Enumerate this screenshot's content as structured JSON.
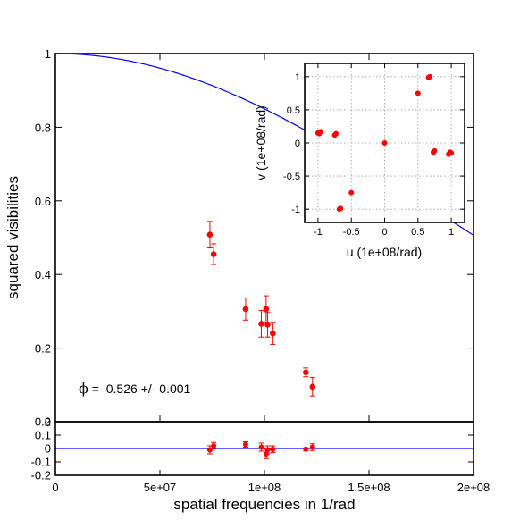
{
  "chart_data": [
    {
      "type": "scatter",
      "panel": "main",
      "xlabel": "spatial frequencies in 1/rad",
      "ylabel": "squared visibilities",
      "xlim": [
        0,
        200000000
      ],
      "ylim": [
        0,
        1
      ],
      "xticks": [
        {
          "value": 0,
          "label": "0"
        },
        {
          "value": 50000000,
          "label": "5e+07"
        },
        {
          "value": 100000000,
          "label": "1e+08"
        },
        {
          "value": 150000000,
          "label": "1.5e+08"
        },
        {
          "value": 200000000,
          "label": "2e+08"
        }
      ],
      "yticks": [
        {
          "value": 0,
          "label": "0"
        },
        {
          "value": 0.2,
          "label": "0.2"
        },
        {
          "value": 0.4,
          "label": "0.4"
        },
        {
          "value": 0.6,
          "label": "0.6"
        },
        {
          "value": 0.8,
          "label": "0.8"
        },
        {
          "value": 1,
          "label": "1"
        }
      ],
      "annotation": {
        "symbol": "ϕ",
        "text": " =  0.526 +/- 0.001"
      },
      "model": {
        "type": "uniform-disk-squared-visibility",
        "diameter": 0.526
      },
      "colors": {
        "points": "#ff0000",
        "model": "#0000ff"
      },
      "points": [
        {
          "x": 73900000,
          "y": 0.508,
          "err": 0.036
        },
        {
          "x": 75700000,
          "y": 0.455,
          "err": 0.028
        },
        {
          "x": 91000000,
          "y": 0.306,
          "err": 0.03
        },
        {
          "x": 98500000,
          "y": 0.266,
          "err": 0.036
        },
        {
          "x": 100800000,
          "y": 0.306,
          "err": 0.036
        },
        {
          "x": 101500000,
          "y": 0.264,
          "err": 0.034
        },
        {
          "x": 104000000,
          "y": 0.24,
          "err": 0.03
        },
        {
          "x": 119800000,
          "y": 0.134,
          "err": 0.012
        },
        {
          "x": 123000000,
          "y": 0.095,
          "err": 0.025
        }
      ]
    },
    {
      "type": "scatter",
      "panel": "residuals",
      "xlim": [
        0,
        200000000
      ],
      "ylim": [
        -0.2,
        0.2
      ],
      "yticks": [
        {
          "value": -0.2,
          "label": "-0.2"
        },
        {
          "value": -0.1,
          "label": "-0.1"
        },
        {
          "value": 0,
          "label": "0"
        },
        {
          "value": 0.1,
          "label": "0.1"
        },
        {
          "value": 0.2,
          "label": "0.2"
        }
      ],
      "points": [
        {
          "x": 73900000,
          "y": -0.01,
          "err": 0.03
        },
        {
          "x": 75700000,
          "y": 0.02,
          "err": 0.025
        },
        {
          "x": 91000000,
          "y": 0.03,
          "err": 0.02
        },
        {
          "x": 98500000,
          "y": 0.01,
          "err": 0.03
        },
        {
          "x": 100800000,
          "y": -0.04,
          "err": 0.035
        },
        {
          "x": 101500000,
          "y": -0.01,
          "err": 0.03
        },
        {
          "x": 104000000,
          "y": -0.005,
          "err": 0.025
        },
        {
          "x": 119800000,
          "y": -0.005,
          "err": 0.01
        },
        {
          "x": 123000000,
          "y": 0.01,
          "err": 0.025
        }
      ]
    },
    {
      "type": "scatter",
      "panel": "uv-coverage",
      "xlabel": "u (1e+08/rad)",
      "ylabel": "v (1e+08/rad)",
      "xlim": [
        -1.2,
        1.2
      ],
      "ylim": [
        -1.2,
        1.2
      ],
      "grid": true,
      "xticks": [
        {
          "value": -1,
          "label": "-1"
        },
        {
          "value": -0.5,
          "label": "-0.5"
        },
        {
          "value": 0,
          "label": "0"
        },
        {
          "value": 0.5,
          "label": "0.5"
        },
        {
          "value": 1,
          "label": "1"
        }
      ],
      "yticks": [
        {
          "value": -1,
          "label": "-1"
        },
        {
          "value": -0.5,
          "label": "-0.5"
        },
        {
          "value": 0,
          "label": "0"
        },
        {
          "value": 0.5,
          "label": "0.5"
        },
        {
          "value": 1,
          "label": "1"
        }
      ],
      "points": [
        {
          "x": 0,
          "y": 0
        },
        {
          "x": 0.5,
          "y": 0.75
        },
        {
          "x": 0.66,
          "y": 0.99
        },
        {
          "x": 0.68,
          "y": 1.0
        },
        {
          "x": -0.5,
          "y": -0.75
        },
        {
          "x": -0.66,
          "y": -0.99
        },
        {
          "x": -0.68,
          "y": -1.0
        },
        {
          "x": -0.96,
          "y": 0.17
        },
        {
          "x": -0.98,
          "y": 0.14
        },
        {
          "x": -1.0,
          "y": 0.15
        },
        {
          "x": -0.73,
          "y": 0.14
        },
        {
          "x": -0.75,
          "y": 0.12
        },
        {
          "x": 0.96,
          "y": -0.17
        },
        {
          "x": 0.98,
          "y": -0.14
        },
        {
          "x": 1.0,
          "y": -0.15
        },
        {
          "x": 0.73,
          "y": -0.14
        },
        {
          "x": 0.75,
          "y": -0.12
        }
      ]
    }
  ]
}
